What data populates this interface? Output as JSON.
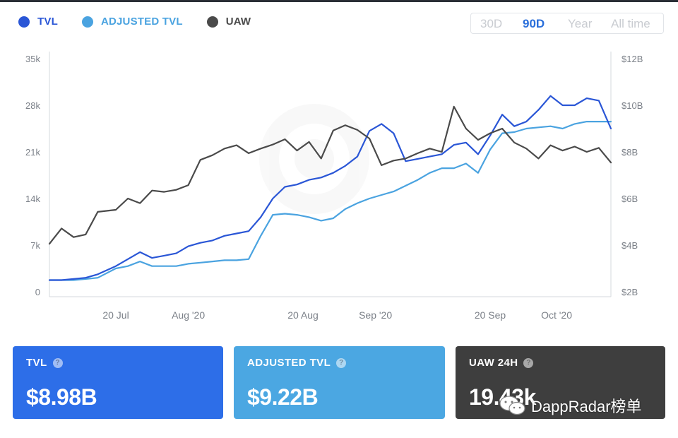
{
  "legend": [
    {
      "label": "TVL",
      "color": "#2a56d6"
    },
    {
      "label": "ADJUSTED TVL",
      "color": "#4aa3e0"
    },
    {
      "label": "UAW",
      "color": "#4a4a4a"
    }
  ],
  "range_tabs": [
    {
      "label": "30D",
      "active": false
    },
    {
      "label": "90D",
      "active": true
    },
    {
      "label": "Year",
      "active": false
    },
    {
      "label": "All time",
      "active": false
    }
  ],
  "chart_data": {
    "type": "line",
    "x_tick_labels": [
      "20 Jul",
      "Aug '20",
      "20 Aug",
      "Sep '20",
      "20 Sep",
      "Oct '20"
    ],
    "left_axis": {
      "ticks": [
        "0",
        "7k",
        "14k",
        "21k",
        "28k",
        "35k"
      ],
      "ylim": [
        0,
        35000
      ]
    },
    "right_axis": {
      "ticks": [
        "$2B",
        "$4B",
        "$6B",
        "$8B",
        "$10B",
        "$12B"
      ],
      "ylim": [
        2,
        12
      ]
    },
    "grid": false,
    "legend_position": "top-left",
    "series": [
      {
        "name": "TVL",
        "axis": "right",
        "color": "#2a56d6",
        "x": [
          "2020-07-09",
          "2020-07-11",
          "2020-07-13",
          "2020-07-15",
          "2020-07-17",
          "2020-07-20",
          "2020-07-22",
          "2020-07-24",
          "2020-07-26",
          "2020-07-28",
          "2020-07-30",
          "2020-08-01",
          "2020-08-03",
          "2020-08-05",
          "2020-08-07",
          "2020-08-09",
          "2020-08-11",
          "2020-08-13",
          "2020-08-15",
          "2020-08-17",
          "2020-08-19",
          "2020-08-21",
          "2020-08-23",
          "2020-08-25",
          "2020-08-27",
          "2020-08-29",
          "2020-08-31",
          "2020-09-02",
          "2020-09-04",
          "2020-09-06",
          "2020-09-08",
          "2020-09-10",
          "2020-09-12",
          "2020-09-14",
          "2020-09-16",
          "2020-09-18",
          "2020-09-20",
          "2020-09-22",
          "2020-09-24",
          "2020-09-26",
          "2020-09-28",
          "2020-09-30",
          "2020-10-02",
          "2020-10-04",
          "2020-10-06",
          "2020-10-08",
          "2020-10-10"
        ],
        "values": [
          2.5,
          2.5,
          2.55,
          2.6,
          2.75,
          3.1,
          3.4,
          3.7,
          3.45,
          3.55,
          3.65,
          3.95,
          4.1,
          4.2,
          4.4,
          4.5,
          4.6,
          5.2,
          6.0,
          6.5,
          6.6,
          6.8,
          6.9,
          7.1,
          7.4,
          7.8,
          8.9,
          9.2,
          8.8,
          7.6,
          7.7,
          7.8,
          7.9,
          8.3,
          8.4,
          7.9,
          8.7,
          9.6,
          9.1,
          9.3,
          9.8,
          10.4,
          10.0,
          10.0,
          10.3,
          10.2,
          9.0
        ]
      },
      {
        "name": "ADJUSTED TVL",
        "axis": "right",
        "color": "#4aa3e0",
        "x": [
          "2020-07-09",
          "2020-07-11",
          "2020-07-13",
          "2020-07-15",
          "2020-07-17",
          "2020-07-20",
          "2020-07-22",
          "2020-07-24",
          "2020-07-26",
          "2020-07-28",
          "2020-07-30",
          "2020-08-01",
          "2020-08-03",
          "2020-08-05",
          "2020-08-07",
          "2020-08-09",
          "2020-08-11",
          "2020-08-13",
          "2020-08-15",
          "2020-08-17",
          "2020-08-19",
          "2020-08-21",
          "2020-08-23",
          "2020-08-25",
          "2020-08-27",
          "2020-08-29",
          "2020-08-31",
          "2020-09-02",
          "2020-09-04",
          "2020-09-06",
          "2020-09-08",
          "2020-09-10",
          "2020-09-12",
          "2020-09-14",
          "2020-09-16",
          "2020-09-18",
          "2020-09-20",
          "2020-09-22",
          "2020-09-24",
          "2020-09-26",
          "2020-09-28",
          "2020-09-30",
          "2020-10-02",
          "2020-10-04",
          "2020-10-06",
          "2020-10-08",
          "2020-10-10"
        ],
        "values": [
          2.5,
          2.5,
          2.5,
          2.55,
          2.6,
          3.0,
          3.1,
          3.3,
          3.1,
          3.1,
          3.1,
          3.2,
          3.25,
          3.3,
          3.35,
          3.35,
          3.4,
          4.4,
          5.3,
          5.35,
          5.3,
          5.2,
          5.05,
          5.15,
          5.55,
          5.8,
          6.0,
          6.15,
          6.3,
          6.55,
          6.8,
          7.1,
          7.3,
          7.3,
          7.5,
          7.1,
          8.1,
          8.8,
          8.85,
          9.0,
          9.05,
          9.1,
          9.0,
          9.2,
          9.3,
          9.3,
          9.3
        ]
      },
      {
        "name": "UAW",
        "axis": "left",
        "color": "#4a4a4a",
        "x": [
          "2020-07-09",
          "2020-07-11",
          "2020-07-13",
          "2020-07-15",
          "2020-07-17",
          "2020-07-20",
          "2020-07-22",
          "2020-07-24",
          "2020-07-26",
          "2020-07-28",
          "2020-07-30",
          "2020-08-01",
          "2020-08-03",
          "2020-08-05",
          "2020-08-07",
          "2020-08-09",
          "2020-08-11",
          "2020-08-13",
          "2020-08-15",
          "2020-08-17",
          "2020-08-19",
          "2020-08-21",
          "2020-08-23",
          "2020-08-25",
          "2020-08-27",
          "2020-08-29",
          "2020-08-31",
          "2020-09-02",
          "2020-09-04",
          "2020-09-06",
          "2020-09-08",
          "2020-09-10",
          "2020-09-12",
          "2020-09-14",
          "2020-09-16",
          "2020-09-18",
          "2020-09-20",
          "2020-09-22",
          "2020-09-24",
          "2020-09-26",
          "2020-09-28",
          "2020-09-30",
          "2020-10-02",
          "2020-10-04",
          "2020-10-06",
          "2020-10-08",
          "2020-10-10"
        ],
        "values": [
          7200,
          9500,
          8200,
          8600,
          12000,
          12300,
          14000,
          13300,
          15200,
          15000,
          15300,
          16000,
          19800,
          20500,
          21500,
          22000,
          20800,
          21500,
          22100,
          22900,
          21200,
          22500,
          20000,
          24200,
          25000,
          24300,
          23000,
          19000,
          19700,
          20000,
          20800,
          21500,
          21000,
          27800,
          24500,
          22800,
          23800,
          24500,
          22400,
          21500,
          20000,
          22000,
          21200,
          21800,
          21000,
          21600,
          19400
        ]
      }
    ]
  },
  "cards": [
    {
      "label": "TVL",
      "value": "$8.98B",
      "color": "#2d6ee8"
    },
    {
      "label": "ADJUSTED TVL",
      "value": "$9.22B",
      "color": "#4ba7e2"
    },
    {
      "label": "UAW 24H",
      "value": "19.43k",
      "color": "#3e3e3e"
    }
  ],
  "watermark": {
    "text": "DappRadar榜单",
    "icon": "wechat-icon"
  }
}
